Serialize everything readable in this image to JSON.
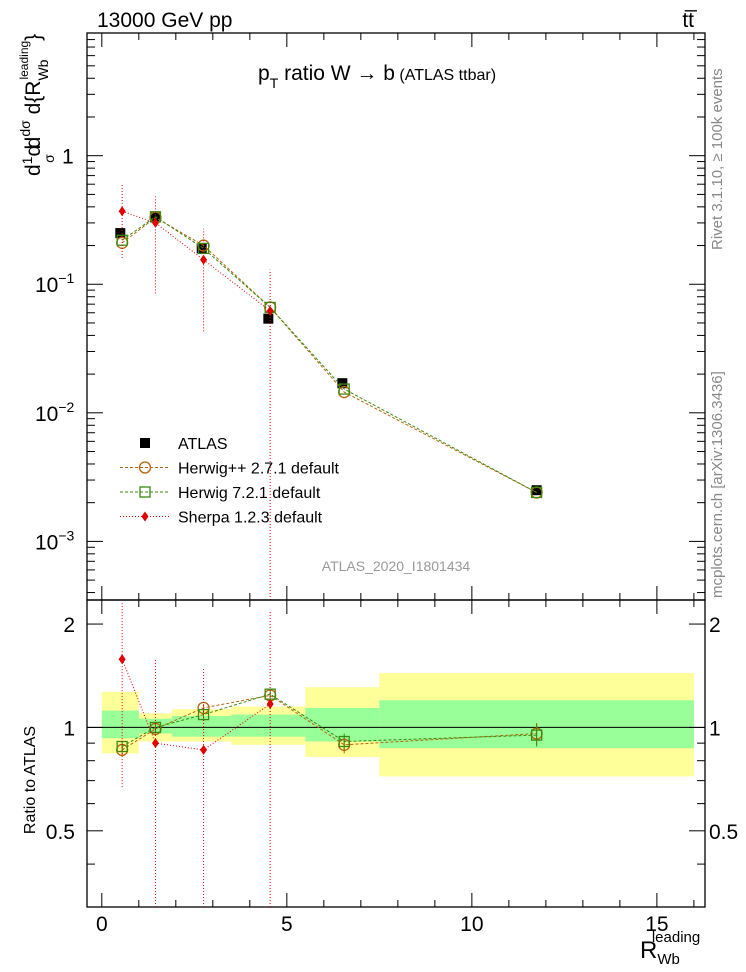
{
  "header": {
    "left": "13000 GeV pp",
    "right": "tt̅"
  },
  "plot_title": {
    "main": "p",
    "sub": "T",
    "rest": " ratio W → b",
    "small": " (ATLAS ttbar)"
  },
  "watermark": "ATLAS_2020_I1801434",
  "side_text_1": "Rivet 3.1.10, ≥ 100k events",
  "side_text_2": "mcplots.cern.ch [arXiv:1306.3436]",
  "y_label_main": "d¹⁄σ dσ/d{R_Wb^leading}",
  "y_label_ratio": "Ratio to ATLAS",
  "x_label": {
    "main": "R",
    "sub": "Wb",
    "sup": "leading"
  },
  "colors": {
    "data": "#000000",
    "herwigpp": "#b8640a",
    "herwig7": "#3a8a10",
    "sherpa": "#e00000",
    "band_yellow": "#ffff99",
    "band_green": "#99ff99"
  },
  "chart_data": [
    {
      "type": "scatter",
      "panel": "main",
      "yscale": "log",
      "xlim": [
        -0.4,
        16.3
      ],
      "ylim": [
        0.00035,
        9
      ],
      "xticks": [
        0,
        5,
        10,
        15
      ],
      "yticks": [
        {
          "v": 1,
          "base": "1",
          "exp": ""
        },
        {
          "v": 0.1,
          "base": "10",
          "exp": "−1"
        },
        {
          "v": 0.01,
          "base": "10",
          "exp": "−2"
        },
        {
          "v": 0.001,
          "base": "10",
          "exp": "−3"
        }
      ],
      "legend": [
        {
          "key": "data",
          "label": "ATLAS"
        },
        {
          "key": "herwigpp",
          "label": "Herwig++ 2.7.1 default"
        },
        {
          "key": "herwig7",
          "label": "Herwig 7.2.1 default"
        },
        {
          "key": "sherpa",
          "label": "Sherpa 1.2.3 default"
        }
      ],
      "series": [
        {
          "key": "data",
          "name": "ATLAS",
          "x": [
            0.5,
            1.45,
            2.7,
            4.5,
            6.5,
            11.75
          ],
          "y": [
            0.25,
            0.33,
            0.19,
            0.054,
            0.017,
            0.0025
          ]
        },
        {
          "key": "herwigpp",
          "name": "Herwig++ 2.7.1 default",
          "x": [
            0.55,
            1.45,
            2.75,
            4.55,
            6.55,
            11.75
          ],
          "y": [
            0.21,
            0.33,
            0.2,
            0.066,
            0.0145,
            0.0024
          ]
        },
        {
          "key": "herwig7",
          "name": "Herwig 7.2.1 default",
          "x": [
            0.55,
            1.45,
            2.75,
            4.55,
            6.55,
            11.75
          ],
          "y": [
            0.22,
            0.335,
            0.19,
            0.066,
            0.0153,
            0.0024
          ]
        },
        {
          "key": "sherpa",
          "name": "Sherpa 1.2.3 default",
          "x": [
            0.55,
            1.45,
            2.75,
            4.55
          ],
          "y": [
            0.37,
            0.3,
            0.155,
            0.062
          ],
          "yerr_low": [
            0.16,
            0.085,
            0.043,
            0.00035
          ],
          "yerr_high": [
            0.6,
            0.5,
            0.27,
            0.13
          ]
        }
      ]
    },
    {
      "type": "scatter",
      "panel": "ratio",
      "xlim": [
        -0.4,
        16.3
      ],
      "ylim": [
        0.3,
        2.35
      ],
      "yticks": [
        0.5,
        1,
        2
      ],
      "bins": [
        {
          "lo": 0,
          "hi": 1,
          "y_lo": 0.84,
          "y_hi": 1.27,
          "g_lo": 0.93,
          "g_hi": 1.12
        },
        {
          "lo": 1,
          "hi": 1.9,
          "y_lo": 0.91,
          "y_hi": 1.1,
          "g_lo": 0.96,
          "g_hi": 1.06
        },
        {
          "lo": 1.9,
          "hi": 3.5,
          "y_lo": 0.91,
          "y_hi": 1.13,
          "g_lo": 0.94,
          "g_hi": 1.08
        },
        {
          "lo": 3.5,
          "hi": 5.5,
          "y_lo": 0.89,
          "y_hi": 1.15,
          "g_lo": 0.94,
          "g_hi": 1.09
        },
        {
          "lo": 5.5,
          "hi": 7.5,
          "y_lo": 0.82,
          "y_hi": 1.31,
          "g_lo": 0.91,
          "g_hi": 1.14
        },
        {
          "lo": 7.5,
          "hi": 16,
          "y_lo": 0.72,
          "y_hi": 1.44,
          "g_lo": 0.87,
          "g_hi": 1.2
        }
      ],
      "series": [
        {
          "key": "herwigpp",
          "name": "Herwig++ 2.7.1 default",
          "x": [
            0.55,
            1.45,
            2.75,
            4.55,
            6.55,
            11.75
          ],
          "y": [
            0.86,
            0.99,
            1.14,
            1.24,
            0.89,
            0.96
          ],
          "yerr": [
            0.03,
            0.03,
            0.03,
            0.03,
            0.05,
            0.07
          ]
        },
        {
          "key": "herwig7",
          "name": "Herwig 7.2.1 default",
          "x": [
            0.55,
            1.45,
            2.75,
            4.55,
            6.55,
            11.75
          ],
          "y": [
            0.88,
            1.0,
            1.09,
            1.25,
            0.91,
            0.95
          ],
          "yerr": [
            0.03,
            0.03,
            0.03,
            0.03,
            0.05,
            0.07
          ]
        },
        {
          "key": "sherpa",
          "name": "Sherpa 1.2.3 default",
          "x": [
            0.55,
            1.45,
            2.75,
            4.55
          ],
          "y": [
            1.58,
            0.9,
            0.86,
            1.17
          ],
          "yerr_low": [
            0.67,
            0.3,
            0.3,
            0.3
          ],
          "yerr_high": [
            2.3,
            1.58,
            1.5,
            2.2
          ]
        }
      ]
    }
  ]
}
